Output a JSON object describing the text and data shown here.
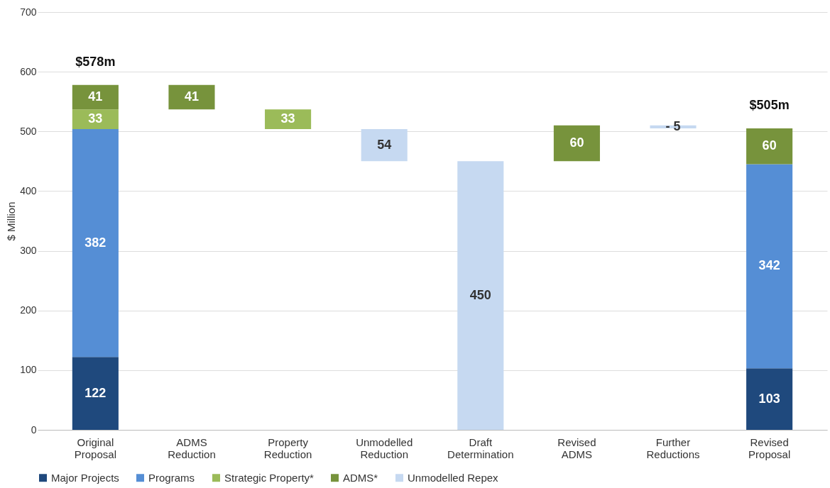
{
  "chart_data": {
    "type": "bar",
    "stacked": true,
    "ylabel": "$ Million",
    "categories": [
      "Original Proposal",
      "ADMS Reduction",
      "Property Reduction",
      "Unmodelled Reduction",
      "Draft Determination",
      "Revised ADMS",
      "Further Reductions",
      "Revised Proposal"
    ],
    "series": [
      {
        "name": "Major Projects",
        "color": "#1f497d",
        "values": [
          122,
          null,
          null,
          null,
          null,
          null,
          null,
          103
        ]
      },
      {
        "name": "Programs",
        "color": "#558ed5",
        "values": [
          382,
          null,
          null,
          null,
          null,
          null,
          null,
          342
        ]
      },
      {
        "name": "Strategic Property*",
        "color": "#9bbb59",
        "values": [
          33,
          null,
          33,
          null,
          null,
          null,
          null,
          null
        ],
        "base": [
          null,
          null,
          504,
          null,
          null,
          null,
          null,
          null
        ]
      },
      {
        "name": "ADMS*",
        "color": "#77933c",
        "values": [
          41,
          41,
          null,
          null,
          null,
          60,
          null,
          60
        ],
        "base": [
          null,
          537,
          null,
          null,
          null,
          450,
          null,
          null
        ]
      },
      {
        "name": "Unmodelled Repex",
        "color": "#c6d9f1",
        "values": [
          null,
          null,
          null,
          54,
          450,
          null,
          -5,
          null
        ],
        "base": [
          null,
          null,
          null,
          450,
          null,
          null,
          510,
          null
        ],
        "value_labels": [
          null,
          null,
          null,
          "54",
          "450",
          null,
          "- 5",
          null
        ]
      }
    ],
    "data_labels": true,
    "totals": [
      "$578m",
      null,
      null,
      null,
      null,
      null,
      null,
      "$505m"
    ],
    "ylim": [
      0,
      700
    ],
    "yticks": [
      0,
      100,
      200,
      300,
      400,
      500,
      600,
      700
    ],
    "grid": "y",
    "legend": "bottom"
  }
}
